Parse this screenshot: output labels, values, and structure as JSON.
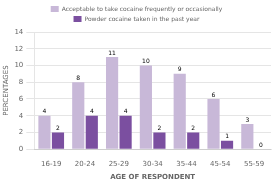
{
  "chart_data": {
    "type": "bar",
    "categories": [
      "16-19",
      "20-24",
      "25-29",
      "30-34",
      "35-44",
      "45-54",
      "55-59"
    ],
    "series": [
      {
        "name": "Acceptable to take cocaine frequently or occasionally",
        "color": "#c8b8d8",
        "values": [
          4,
          8,
          11,
          10,
          9,
          6,
          3
        ]
      },
      {
        "name": "Powder cocaine taken in the past year",
        "color": "#7b4fa0",
        "values": [
          2,
          4,
          4,
          2,
          2,
          1,
          0
        ]
      }
    ],
    "xlabel": "AGE OF RESPONDENT",
    "ylabel": "PERCENTAGES",
    "ylim": [
      0,
      14
    ],
    "yticks": [
      0,
      2,
      4,
      6,
      8,
      10,
      12,
      14
    ],
    "grid": true,
    "data_labels": true,
    "legend": "top"
  }
}
